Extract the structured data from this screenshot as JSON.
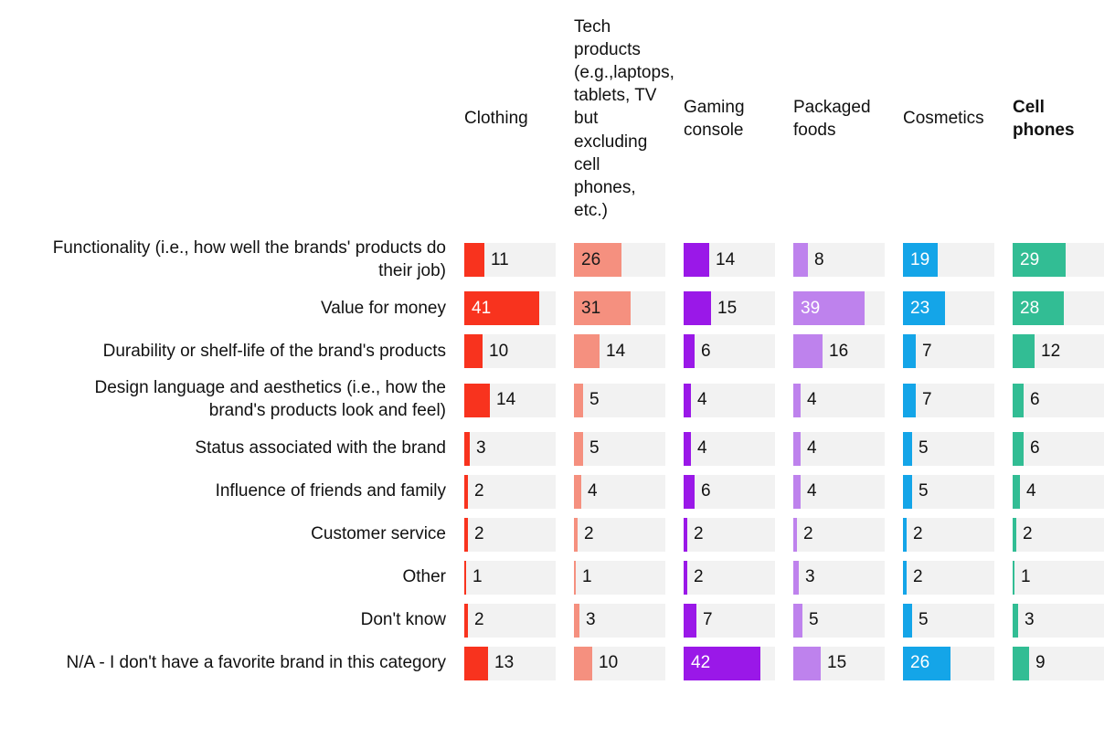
{
  "chart_data": {
    "type": "bar",
    "orientation": "horizontal",
    "title": "",
    "xlabel": "",
    "ylabel": "",
    "xlim": [
      0,
      50
    ],
    "grid": false,
    "legend_position": "top-as-column-headers",
    "track_color": "#f2f2f2",
    "inside_label_min": 18,
    "categories": [
      "Functionality (i.e., how well the brands' products do their job)",
      "Value for money",
      "Durability or shelf-life of the brand's products",
      "Design language and aesthetics (i.e., how the brand's products look and feel)",
      "Status associated with the brand",
      "Influence of friends and family",
      "Customer service",
      "Other",
      "Don't know",
      "N/A - I don't have a favorite brand in this category"
    ],
    "series": [
      {
        "name": "Clothing",
        "color": "#f8331e",
        "inside_label_color": "#ffffff",
        "bold": false,
        "values": [
          11,
          41,
          10,
          14,
          3,
          2,
          2,
          1,
          2,
          13
        ]
      },
      {
        "name": "Tech products (e.g.,laptops, tablets, TV but excluding cell phones, etc.)",
        "color": "#f5907f",
        "inside_label_color": "#1a1a1a",
        "bold": false,
        "values": [
          26,
          31,
          14,
          5,
          5,
          4,
          2,
          1,
          3,
          10
        ]
      },
      {
        "name": "Gaming console",
        "color": "#9a18e8",
        "inside_label_color": "#ffffff",
        "bold": false,
        "values": [
          14,
          15,
          6,
          4,
          4,
          6,
          2,
          2,
          7,
          42
        ]
      },
      {
        "name": "Packaged foods",
        "color": "#be82ed",
        "inside_label_color": "#ffffff",
        "bold": false,
        "values": [
          8,
          39,
          16,
          4,
          4,
          4,
          2,
          3,
          5,
          15
        ]
      },
      {
        "name": "Cosmetics",
        "color": "#14a5e8",
        "inside_label_color": "#ffffff",
        "bold": false,
        "values": [
          19,
          23,
          7,
          7,
          5,
          5,
          2,
          2,
          5,
          26
        ]
      },
      {
        "name": "Cell phones",
        "color": "#32bd94",
        "inside_label_color": "#ffffff",
        "bold": true,
        "values": [
          29,
          28,
          12,
          6,
          6,
          4,
          2,
          1,
          3,
          9
        ]
      }
    ]
  }
}
